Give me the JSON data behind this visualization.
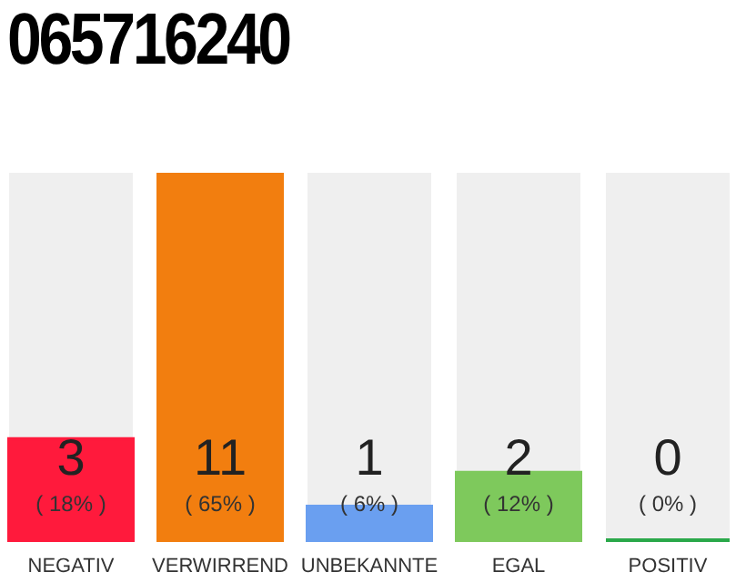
{
  "chart_data": {
    "type": "bar",
    "title": "065716240",
    "categories": [
      "NEGATIV",
      "VERWIRREND",
      "UNBEKANNTE",
      "EGAL",
      "POSITIV"
    ],
    "values": [
      18,
      65,
      6,
      12,
      0
    ],
    "colors": [
      "#ff1a3c",
      "#f27e0f",
      "#6a9ff0",
      "#7ec95c",
      "#2aa84a"
    ],
    "value_labels": [
      "( 18% )",
      "( 65% )",
      "( 6% )",
      "( 12% )",
      "( 0% )"
    ],
    "annotations": [
      "3",
      "11",
      "1",
      "2",
      "0"
    ],
    "grid": false
  }
}
